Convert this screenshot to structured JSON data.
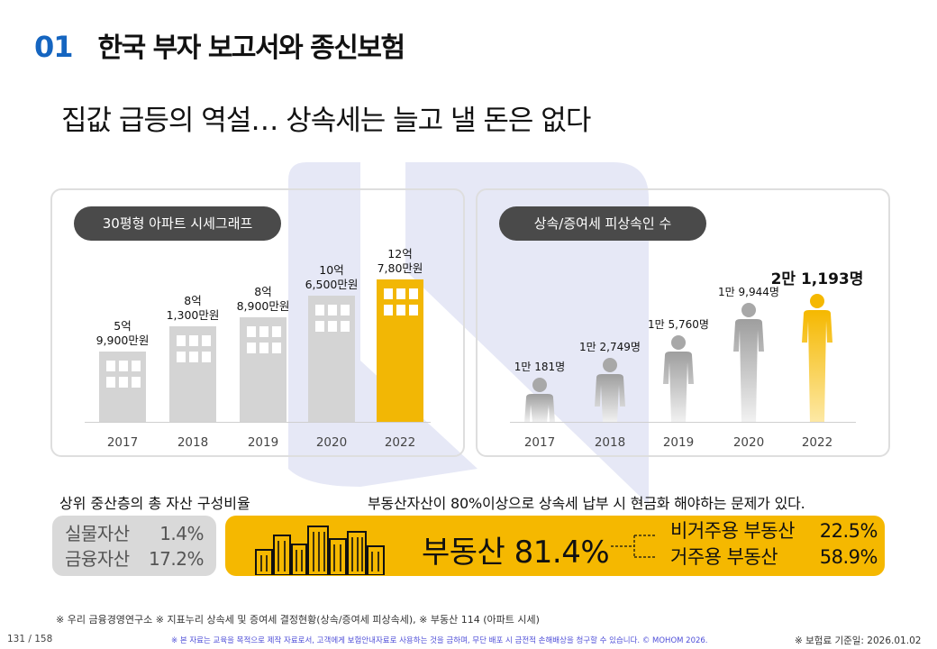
{
  "header": {
    "number": "01",
    "title": "한국 부자 보고서와 종신보험"
  },
  "subtitle": "집값 급등의 역설… 상속세는 늘고 낼 돈은 없다",
  "left_panel": {
    "pill": "30평형 아파트 시세그래프",
    "years": [
      "2017",
      "2018",
      "2019",
      "2020",
      "2022"
    ],
    "labels": [
      [
        "5억",
        "9,900만원"
      ],
      [
        "8억",
        "1,300만원"
      ],
      [
        "8억",
        "8,900만원"
      ],
      [
        "10억",
        "6,500만원"
      ],
      [
        "12억",
        "7,80만원"
      ]
    ]
  },
  "right_panel": {
    "pill": "상속/증여세 피상속인 수",
    "years": [
      "2017",
      "2018",
      "2019",
      "2020",
      "2022"
    ],
    "labels": [
      "1만 181명",
      "1만 2,749명",
      "1만 5,760명",
      "1만 9,944명",
      "2만 1,193명"
    ]
  },
  "chart_data": [
    {
      "type": "bar",
      "title": "30평형 아파트 시세그래프",
      "categories": [
        "2017",
        "2018",
        "2019",
        "2020",
        "2022"
      ],
      "values": [
        59900,
        81300,
        88900,
        106500,
        120780
      ],
      "unit": "만원",
      "highlight": "2022"
    },
    {
      "type": "bar",
      "title": "상속/증여세 피상속인 수",
      "categories": [
        "2017",
        "2018",
        "2019",
        "2020",
        "2022"
      ],
      "values": [
        10181,
        12749,
        15760,
        19944,
        21193
      ],
      "unit": "명",
      "highlight": "2022"
    }
  ],
  "composition": {
    "caption_left": "상위 중산층의 총 자산 구성비율",
    "caption_right": "부동산자산이 80%이상으로 상속세 납부 시 현금화 해야하는 문제가 있다.",
    "small": [
      {
        "label": "실물자산",
        "value": "1.4%"
      },
      {
        "label": "금융자산",
        "value": "17.2%"
      }
    ],
    "main_label": "부동산 81.4%",
    "sub": [
      {
        "label": "비거주용 부동산",
        "value": "22.5%"
      },
      {
        "label": "거주용 부동산",
        "value": "58.9%"
      }
    ]
  },
  "footer": {
    "source": "※ 우리 금융경영연구소 ※ 지표누리 상속세 및 증여세 결정현황(상속/증여세 피상속세), ※ 부동산 114 (아파트 시세)",
    "page": "131 / 158",
    "disclaimer": "※ 본 자료는 교육을 목적으로 제작 자료로서, 고객에게 보험안내자료로 사용하는 것을 금하며, 무단 배포 시 금전적 손해배상을 청구할 수 있습니다. © MOHOM 2026.",
    "date": "※ 보험료 기준일: 2026.01.02"
  },
  "colors": {
    "accent": "#1565c0",
    "highlight": "#f5b800",
    "bar": "#d4d4d4",
    "pill": "#4a4a4a"
  }
}
